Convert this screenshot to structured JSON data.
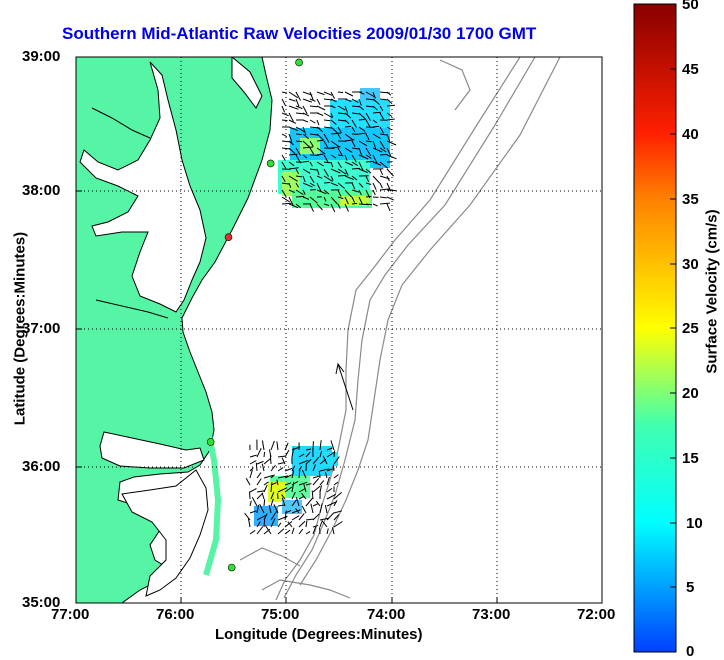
{
  "title": "Southern Mid-Atlantic Raw Velocities 2009/01/30 1700 GMT",
  "x_axis": {
    "label": "Longitude (Degrees:Minutes)",
    "ticks": [
      "77:00",
      "76:00",
      "75:00",
      "74:00",
      "73:00",
      "72:00"
    ]
  },
  "y_axis": {
    "label": "Latitude (Degrees:Minutes)",
    "ticks": [
      "39:00",
      "38:00",
      "37:00",
      "36:00",
      "35:00"
    ]
  },
  "colorbar": {
    "label": "Surface Velocity (cm/s)",
    "ticks": [
      "50",
      "45",
      "40",
      "35",
      "30",
      "25",
      "20",
      "15",
      "10",
      "5",
      "0"
    ],
    "min": 0,
    "max": 50,
    "colormap": "jet"
  },
  "colors": {
    "land": "#55f5a5",
    "ocean": "#ffffff",
    "title": "#0000ee",
    "bathymetry": "#8a8a8a",
    "grid": "#000000",
    "station_active": "#30e030",
    "station_inactive": "#e03030"
  },
  "map": {
    "lon_range": [
      -77.0,
      -72.0
    ],
    "lat_range": [
      35.0,
      39.0
    ],
    "gridlines": "dotted",
    "stations": [
      {
        "lon": -74.88,
        "lat": 38.96,
        "status": "active"
      },
      {
        "lon": -75.15,
        "lat": 38.22,
        "status": "active"
      },
      {
        "lon": -75.55,
        "lat": 37.68,
        "status": "inactive"
      },
      {
        "lon": -75.72,
        "lat": 36.18,
        "status": "active"
      },
      {
        "lon": -75.52,
        "lat": 35.26,
        "status": "active"
      }
    ],
    "scale_arrow": {
      "lon": -74.3,
      "lat": 36.55,
      "direction_deg": -25
    }
  }
}
